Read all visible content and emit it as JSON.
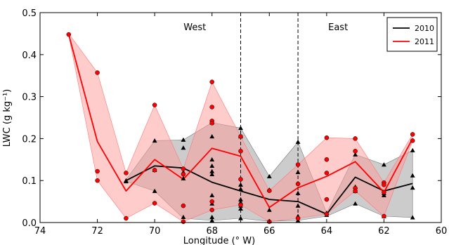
{
  "chart_data": {
    "type": "line",
    "title": "",
    "xlabel": "Longitude (° W)",
    "ylabel": "LWC (g kg⁻¹)",
    "xlim": [
      74,
      60
    ],
    "ylim": [
      0,
      0.5
    ],
    "xticks": [
      74,
      72,
      70,
      68,
      66,
      64,
      62,
      60
    ],
    "yticks": [
      0.0,
      0.1,
      0.2,
      0.3,
      0.4,
      0.5
    ],
    "xtick_labels": [
      "74",
      "72",
      "70",
      "68",
      "66",
      "64",
      "62",
      "60"
    ],
    "ytick_labels": [
      "0.0",
      "0.1",
      "0.2",
      "0.3",
      "0.4",
      "0.5"
    ],
    "grid": false,
    "legend_position": "top-right",
    "vlines": [
      67,
      65
    ],
    "region_labels": [
      {
        "text": "West",
        "x": 68.6,
        "y": 0.465
      },
      {
        "text": "East",
        "x": 63.6,
        "y": 0.465
      }
    ],
    "series": [
      {
        "name": "2010",
        "color": "#000000",
        "band_color": "#999999",
        "marker": "triangle",
        "x": [
          71,
          70,
          69,
          68,
          67,
          66,
          65,
          64,
          63,
          62,
          61
        ],
        "mean": [
          0.1,
          0.135,
          0.13,
          0.096,
          0.075,
          0.055,
          0.05,
          0.02,
          0.108,
          0.075,
          0.093
        ],
        "upper": [
          0.102,
          0.195,
          0.197,
          0.238,
          0.225,
          0.11,
          0.192,
          0.023,
          0.162,
          0.138,
          0.172
        ],
        "lower": [
          0.098,
          0.075,
          0.01,
          0.005,
          0.01,
          0.003,
          0.005,
          0.015,
          0.045,
          0.015,
          0.012
        ],
        "points": [
          [
            71,
            0.1
          ],
          [
            71,
            0.098
          ],
          [
            70,
            0.195
          ],
          [
            70,
            0.125
          ],
          [
            70,
            0.075
          ],
          [
            69,
            0.197
          ],
          [
            69,
            0.178
          ],
          [
            69,
            0.12
          ],
          [
            69,
            0.105
          ],
          [
            69,
            0.013
          ],
          [
            68,
            0.238
          ],
          [
            68,
            0.205
          ],
          [
            68,
            0.15
          ],
          [
            68,
            0.135
          ],
          [
            68,
            0.122
          ],
          [
            68,
            0.115
          ],
          [
            68,
            0.065
          ],
          [
            68,
            0.045
          ],
          [
            68,
            0.013
          ],
          [
            68,
            0.005
          ],
          [
            67,
            0.225
          ],
          [
            67,
            0.205
          ],
          [
            67,
            0.09
          ],
          [
            67,
            0.08
          ],
          [
            67,
            0.055
          ],
          [
            67,
            0.048
          ],
          [
            67,
            0.04
          ],
          [
            67,
            0.033
          ],
          [
            67,
            0.01
          ],
          [
            66,
            0.11
          ],
          [
            66,
            0.078
          ],
          [
            66,
            0.03
          ],
          [
            66,
            0.003
          ],
          [
            65,
            0.192
          ],
          [
            65,
            0.12
          ],
          [
            65,
            0.07
          ],
          [
            65,
            0.04
          ],
          [
            65,
            0.015
          ],
          [
            65,
            0.005
          ],
          [
            64,
            0.023
          ],
          [
            64,
            0.018
          ],
          [
            63,
            0.162
          ],
          [
            63,
            0.085
          ],
          [
            63,
            0.075
          ],
          [
            63,
            0.045
          ],
          [
            62,
            0.138
          ],
          [
            62,
            0.07
          ],
          [
            62,
            0.065
          ],
          [
            62,
            0.015
          ],
          [
            61,
            0.172
          ],
          [
            61,
            0.112
          ],
          [
            61,
            0.083
          ],
          [
            61,
            0.012
          ]
        ]
      },
      {
        "name": "2011",
        "color": "#ff0000",
        "band_color": "#ff9999",
        "marker": "circle",
        "x": [
          73,
          72,
          71,
          70,
          69,
          68,
          67,
          66,
          65,
          64,
          63,
          62,
          61
        ],
        "mean": [
          0.448,
          0.193,
          0.075,
          0.15,
          0.103,
          0.177,
          0.158,
          0.036,
          0.083,
          0.11,
          0.145,
          0.072,
          0.2
        ],
        "upper": [
          0.45,
          0.357,
          0.118,
          0.28,
          0.128,
          0.335,
          0.205,
          0.076,
          0.138,
          0.202,
          0.2,
          0.095,
          0.21
        ],
        "lower": [
          0.446,
          0.1,
          0.01,
          0.046,
          0.002,
          0.03,
          0.042,
          0.002,
          0.01,
          0.02,
          0.075,
          0.015,
          0.195
        ],
        "points": [
          [
            73,
            0.448
          ],
          [
            72,
            0.357
          ],
          [
            72,
            0.122
          ],
          [
            72,
            0.1
          ],
          [
            71,
            0.118
          ],
          [
            71,
            0.01
          ],
          [
            70,
            0.28
          ],
          [
            70,
            0.125
          ],
          [
            70,
            0.046
          ],
          [
            69,
            0.128
          ],
          [
            69,
            0.115
          ],
          [
            69,
            0.04
          ],
          [
            69,
            0.002
          ],
          [
            68,
            0.335
          ],
          [
            68,
            0.275
          ],
          [
            68,
            0.242
          ],
          [
            68,
            0.237
          ],
          [
            68,
            0.05
          ],
          [
            68,
            0.03
          ],
          [
            67,
            0.205
          ],
          [
            67,
            0.17
          ],
          [
            67,
            0.103
          ],
          [
            67,
            0.042
          ],
          [
            66,
            0.076
          ],
          [
            66,
            0.002
          ],
          [
            65,
            0.138
          ],
          [
            65,
            0.092
          ],
          [
            65,
            0.01
          ],
          [
            64,
            0.202
          ],
          [
            64,
            0.15
          ],
          [
            64,
            0.118
          ],
          [
            64,
            0.055
          ],
          [
            64,
            0.02
          ],
          [
            63,
            0.2
          ],
          [
            63,
            0.17
          ],
          [
            63,
            0.082
          ],
          [
            63,
            0.075
          ],
          [
            62,
            0.095
          ],
          [
            62,
            0.09
          ],
          [
            62,
            0.072
          ],
          [
            62,
            0.015
          ],
          [
            61,
            0.21
          ],
          [
            61,
            0.195
          ]
        ]
      }
    ]
  }
}
